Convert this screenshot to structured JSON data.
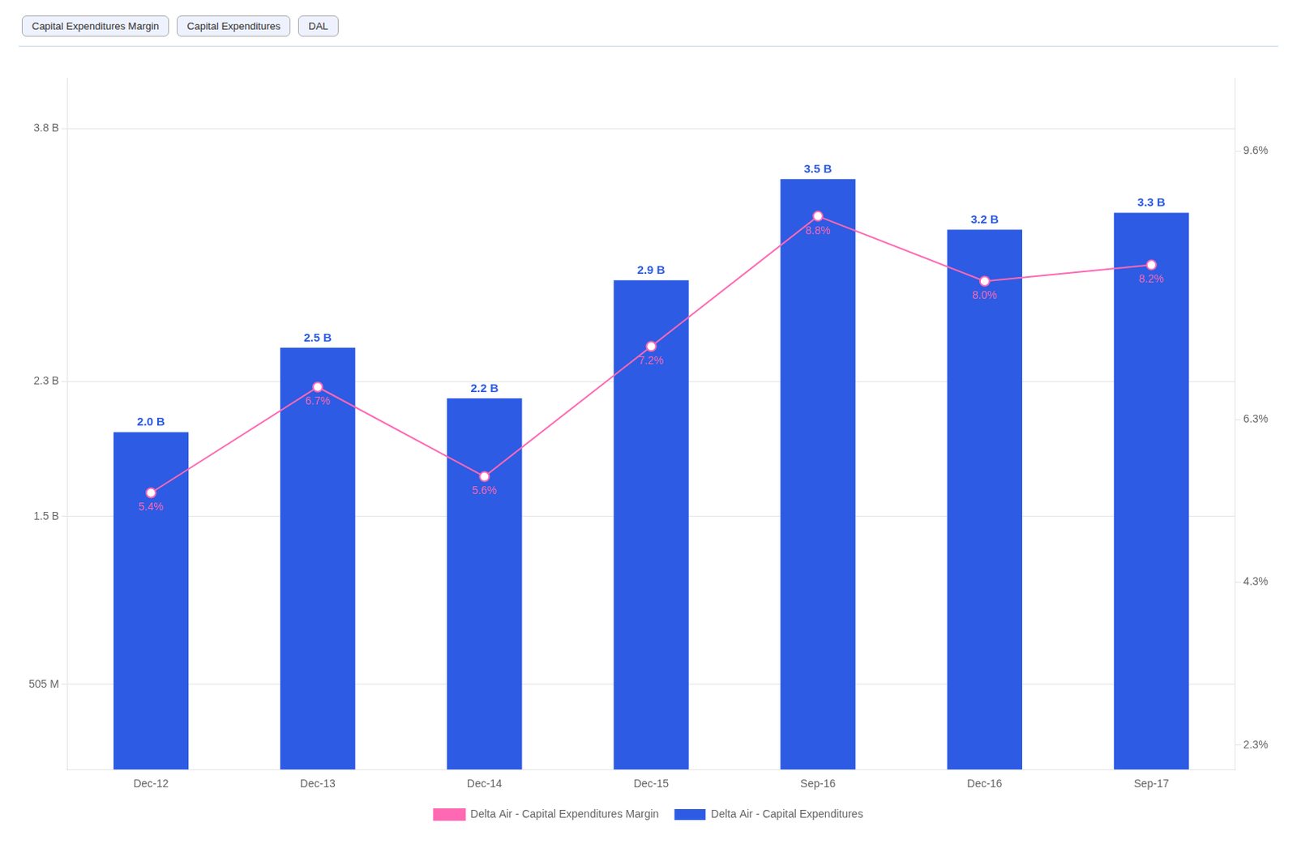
{
  "chart_data": {
    "type": "bar",
    "annotations": [
      "Capital Expenditures Margin",
      "Capital Expenditures",
      "DAL"
    ],
    "categories": [
      "Dec-12",
      "Dec-13",
      "Dec-14",
      "Dec-15",
      "Sep-16",
      "Dec-16",
      "Sep-17"
    ],
    "series": [
      {
        "name": "Delta Air - Capital Expenditures",
        "type": "bar",
        "color": "#2D5BE3",
        "values": [
          2.0,
          2.5,
          2.2,
          2.9,
          3.5,
          3.2,
          3.3
        ],
        "value_labels": [
          "2.0 B",
          "2.5 B",
          "2.2 B",
          "2.9 B",
          "3.5 B",
          "3.2 B",
          "3.3 B"
        ]
      },
      {
        "name": "Delta Air - Capital Expenditures Margin",
        "type": "line",
        "axis": "y2",
        "color": "#FF69B4",
        "marker": "circle",
        "values": [
          5.4,
          6.7,
          5.6,
          7.2,
          8.8,
          8.0,
          8.2
        ],
        "value_labels": [
          "5.4%",
          "6.7%",
          "5.6%",
          "7.2%",
          "8.8%",
          "8.0%",
          "8.2%"
        ]
      }
    ],
    "ylim": [
      0,
      4.1
    ],
    "yticks": [
      {
        "value": 0.505,
        "label": "505 M"
      },
      {
        "value": 1.5,
        "label": "1.5 B"
      },
      {
        "value": 2.3,
        "label": "2.3 B"
      },
      {
        "value": 3.8,
        "label": "3.8 B"
      }
    ],
    "y2lim": [
      2.0,
      10.5
    ],
    "y2ticks": [
      {
        "value": 2.3,
        "label": "2.3%"
      },
      {
        "value": 4.3,
        "label": "4.3%"
      },
      {
        "value": 6.3,
        "label": "6.3%"
      },
      {
        "value": 9.6,
        "label": "9.6%"
      }
    ],
    "grid": true,
    "legend": "bottom",
    "data_labels": true
  }
}
